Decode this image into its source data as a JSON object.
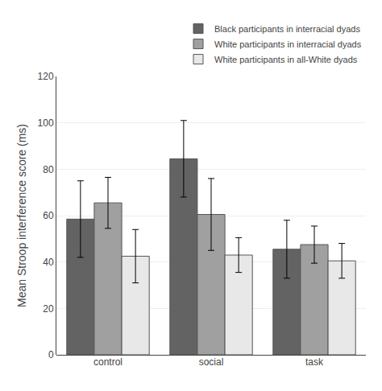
{
  "chart_data": {
    "type": "bar",
    "categories": [
      "control",
      "social",
      "task"
    ],
    "series": [
      {
        "name": "Black participants in interracial dyads",
        "color": "#636363",
        "values": [
          58.5,
          84.5,
          45.5
        ],
        "errors": [
          16.5,
          16.5,
          12.5
        ]
      },
      {
        "name": "White participants in interracial dyads",
        "color": "#a0a0a0",
        "values": [
          65.5,
          60.5,
          47.5
        ],
        "errors": [
          11.0,
          15.5,
          8.0
        ]
      },
      {
        "name": "White participants in all-White dyads",
        "color": "#e8e8e8",
        "values": [
          42.5,
          43.0,
          40.5
        ],
        "errors": [
          11.5,
          7.5,
          7.5
        ]
      }
    ],
    "ylabel": "Mean Stroop interference score (ms)",
    "ylim": [
      0,
      120
    ],
    "yticks": [
      0,
      20,
      40,
      60,
      80,
      100,
      120
    ],
    "grid": true,
    "legend": "upper right"
  }
}
